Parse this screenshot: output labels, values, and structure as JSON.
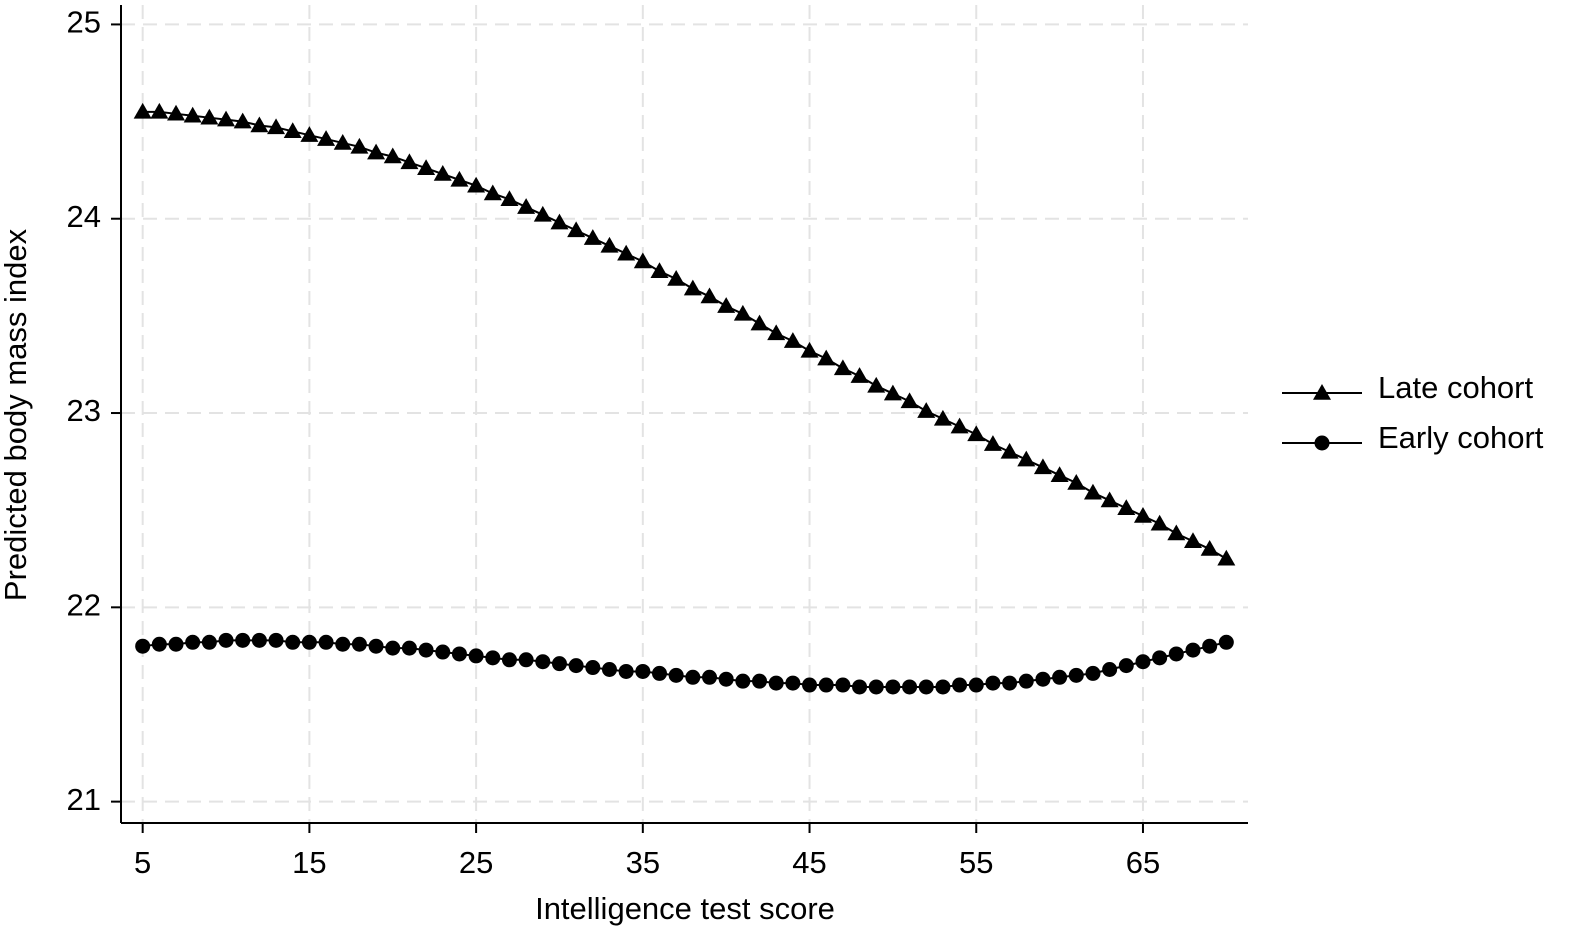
{
  "chart_data": {
    "type": "line",
    "x_label": "Intelligence test score",
    "y_label": "Predicted body mass index",
    "x": [
      5,
      6,
      7,
      8,
      9,
      10,
      11,
      12,
      13,
      14,
      15,
      16,
      17,
      18,
      19,
      20,
      21,
      22,
      23,
      24,
      25,
      26,
      27,
      28,
      29,
      30,
      31,
      32,
      33,
      34,
      35,
      36,
      37,
      38,
      39,
      40,
      41,
      42,
      43,
      44,
      45,
      46,
      47,
      48,
      49,
      50,
      51,
      52,
      53,
      54,
      55,
      56,
      57,
      58,
      59,
      60,
      61,
      62,
      63,
      64,
      65,
      66,
      67,
      68,
      69,
      70
    ],
    "series": [
      {
        "name": "Late cohort",
        "color": "#000000",
        "marker": "triangle",
        "values": [
          24.55,
          24.55,
          24.54,
          24.53,
          24.52,
          24.51,
          24.5,
          24.48,
          24.47,
          24.45,
          24.43,
          24.41,
          24.39,
          24.37,
          24.34,
          24.32,
          24.29,
          24.26,
          24.23,
          24.2,
          24.17,
          24.13,
          24.1,
          24.06,
          24.02,
          23.98,
          23.94,
          23.9,
          23.86,
          23.82,
          23.78,
          23.73,
          23.69,
          23.64,
          23.6,
          23.55,
          23.51,
          23.46,
          23.41,
          23.37,
          23.32,
          23.28,
          23.23,
          23.19,
          23.14,
          23.1,
          23.06,
          23.01,
          22.97,
          22.93,
          22.89,
          22.84,
          22.8,
          22.76,
          22.72,
          22.68,
          22.64,
          22.59,
          22.55,
          22.51,
          22.47,
          22.43,
          22.38,
          22.34,
          22.3,
          22.25
        ]
      },
      {
        "name": "Early cohort",
        "color": "#000000",
        "marker": "circle",
        "values": [
          21.8,
          21.81,
          21.81,
          21.82,
          21.82,
          21.83,
          21.83,
          21.83,
          21.83,
          21.82,
          21.82,
          21.82,
          21.81,
          21.81,
          21.8,
          21.79,
          21.79,
          21.78,
          21.77,
          21.76,
          21.75,
          21.74,
          21.73,
          21.73,
          21.72,
          21.71,
          21.7,
          21.69,
          21.68,
          21.67,
          21.67,
          21.66,
          21.65,
          21.64,
          21.64,
          21.63,
          21.62,
          21.62,
          21.61,
          21.61,
          21.6,
          21.6,
          21.6,
          21.59,
          21.59,
          21.59,
          21.59,
          21.59,
          21.59,
          21.6,
          21.6,
          21.61,
          21.61,
          21.62,
          21.63,
          21.64,
          21.65,
          21.66,
          21.68,
          21.7,
          21.72,
          21.74,
          21.76,
          21.78,
          21.8,
          21.82
        ]
      }
    ],
    "xlim": [
      3.7,
      71.3
    ],
    "xticks": [
      5,
      15,
      25,
      35,
      45,
      55,
      65
    ],
    "ylim": [
      20.89,
      25.1
    ],
    "yticks": [
      21,
      22,
      23,
      24,
      25
    ],
    "grid": true,
    "legend": "right"
  }
}
